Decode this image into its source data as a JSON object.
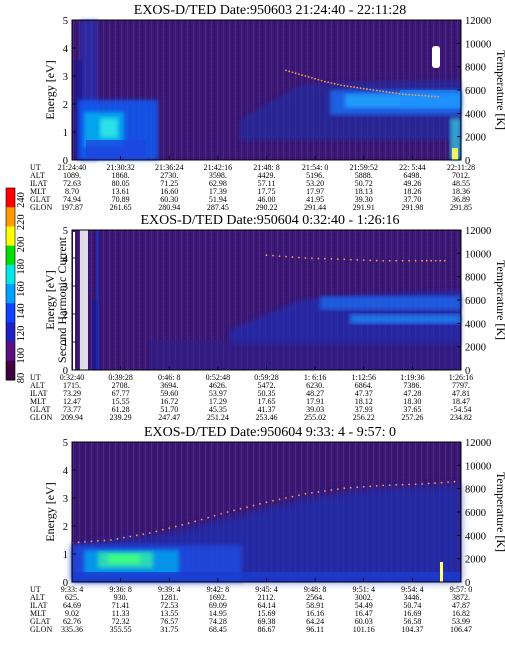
{
  "colorbar": {
    "label": "Second Harmonic Current",
    "ticks": [
      "240",
      "220",
      "200",
      "180",
      "160",
      "140",
      "120",
      "100",
      "80"
    ],
    "colors": [
      "#ff0000",
      "#ff9a00",
      "#ffff00",
      "#00e000",
      "#00e8e8",
      "#00a0ff",
      "#1040ff",
      "#2020c0",
      "#5a1080",
      "#400040"
    ]
  },
  "chart_data": [
    {
      "type": "heatmap",
      "title": "EXOS-D/TED   Date:950603  21:24:40 - 22:11:28",
      "ylabel": "Energy [eV]",
      "y2label": "Temperature [K]",
      "ylim": [
        0,
        5
      ],
      "y2lim": [
        0,
        12000
      ],
      "yticks": [
        "0",
        "1",
        "2",
        "3",
        "4",
        "5"
      ],
      "y2ticks": [
        "0",
        "2000",
        "4000",
        "6000",
        "8000",
        "10000",
        "12000"
      ],
      "rows": [
        {
          "label": "UT",
          "values": [
            "21:24:40",
            "21:30:32",
            "21:36:24",
            "21:42:16",
            "21:48: 8",
            "21:54: 0",
            "21:59:52",
            "22: 5:44",
            "22:11:28"
          ]
        },
        {
          "label": "ALT",
          "values": [
            "1089.",
            "1868.",
            "2730.",
            "3598.",
            "4429.",
            "5196.",
            "5888.",
            "6498.",
            "7012."
          ]
        },
        {
          "label": "ILAT",
          "values": [
            "72.63",
            "80.05",
            "71.25",
            "62.98",
            "57.11",
            "53.20",
            "50.72",
            "49.26",
            "48.55"
          ]
        },
        {
          "label": "MLT",
          "values": [
            "8.70",
            "13.61",
            "16.60",
            "17.39",
            "17.75",
            "17.97",
            "18.13",
            "18.26",
            "18.36"
          ]
        },
        {
          "label": "GLAT",
          "values": [
            "74.94",
            "70.89",
            "60.30",
            "51.94",
            "46.00",
            "41.95",
            "39.30",
            "37.70",
            "36.89"
          ]
        },
        {
          "label": "GLON",
          "values": [
            "197.87",
            "261.65",
            "280.94",
            "287.45",
            "290.22",
            "291.44",
            "291.91",
            "291.98",
            "291.85"
          ]
        }
      ],
      "temperature_trace": [
        [
          0.55,
          3.2
        ],
        [
          0.6,
          3.0
        ],
        [
          0.65,
          2.8
        ],
        [
          0.7,
          2.65
        ],
        [
          0.75,
          2.55
        ],
        [
          0.8,
          2.45
        ],
        [
          0.85,
          2.35
        ],
        [
          0.9,
          2.3
        ],
        [
          0.95,
          2.25
        ]
      ]
    },
    {
      "type": "heatmap",
      "title": "EXOS-D/TED   Date:950604  0:32:40 - 1:26:16",
      "ylabel": "Energy [eV]",
      "y2label": "Temperature [K]",
      "ylim": [
        0,
        5
      ],
      "y2lim": [
        0,
        12000
      ],
      "yticks": [
        "0",
        "1",
        "2",
        "3",
        "4",
        "5"
      ],
      "y2ticks": [
        "0",
        "2000",
        "4000",
        "6000",
        "8000",
        "10000",
        "12000"
      ],
      "rows": [
        {
          "label": "UT",
          "values": [
            "0:32:40",
            "0:39:28",
            "0:46: 8",
            "0:52:48",
            "0:59:28",
            "1: 6:16",
            "1:12:56",
            "1:19:36",
            "1:26:16"
          ]
        },
        {
          "label": "ALT",
          "values": [
            "1715.",
            "2708.",
            "3694.",
            "4626.",
            "5472.",
            "6230.",
            "6864.",
            "7386.",
            "7797."
          ]
        },
        {
          "label": "ILAT",
          "values": [
            "73.29",
            "67.77",
            "59.60",
            "53.97",
            "50.35",
            "48.27",
            "47.37",
            "47.28",
            "47.81"
          ]
        },
        {
          "label": "MLT",
          "values": [
            "12.47",
            "15.55",
            "16.72",
            "17.29",
            "17.65",
            "17.91",
            "18.12",
            "18.30",
            "18.47"
          ]
        },
        {
          "label": "GLAT",
          "values": [
            "73.77",
            "61.28",
            "51.70",
            "45.35",
            "41.37",
            "39.03",
            "37.93",
            "37.65",
            "-54.54"
          ]
        },
        {
          "label": "GLON",
          "values": [
            "209.94",
            "239.29",
            "247.47",
            "251.24",
            "253.46",
            "255.02",
            "256.22",
            "257.26",
            "234.82"
          ]
        }
      ],
      "temperature_trace": [
        [
          0.5,
          4.1
        ],
        [
          0.6,
          4.0
        ],
        [
          0.7,
          3.95
        ],
        [
          0.8,
          3.9
        ],
        [
          0.9,
          3.9
        ],
        [
          0.97,
          3.9
        ]
      ]
    },
    {
      "type": "heatmap",
      "title": "EXOS-D/TED   Date:950604  9:33: 4 - 9:57: 0",
      "ylabel": "Energy [eV]",
      "y2label": "Temperature [K]",
      "ylim": [
        0,
        5
      ],
      "y2lim": [
        0,
        12000
      ],
      "yticks": [
        "0",
        "1",
        "2",
        "3",
        "4",
        "5"
      ],
      "y2ticks": [
        "0",
        "2000",
        "4000",
        "6000",
        "8000",
        "10000",
        "12000"
      ],
      "rows": [
        {
          "label": "UT",
          "values": [
            "9:33: 4",
            "9:36: 8",
            "9:39: 4",
            "9:42: 8",
            "9:45: 4",
            "9:48: 8",
            "9:51: 4",
            "9:54: 4",
            "9:57: 0"
          ]
        },
        {
          "label": "ALT",
          "values": [
            "625.",
            "930.",
            "1281.",
            "1692.",
            "2112.",
            "2564.",
            "3002.",
            "3446.",
            "3872."
          ]
        },
        {
          "label": "ILAT",
          "values": [
            "64.69",
            "71.41",
            "72.53",
            "69.09",
            "64.14",
            "58.91",
            "54.49",
            "50.74",
            "47.87"
          ]
        },
        {
          "label": "MLT",
          "values": [
            "9.02",
            "11.33",
            "13.55",
            "14.95",
            "15.69",
            "16.16",
            "16.47",
            "16.69",
            "16.82"
          ]
        },
        {
          "label": "GLAT",
          "values": [
            "62.76",
            "72.32",
            "76.57",
            "74.28",
            "69.38",
            "64.24",
            "60.03",
            "56.58",
            "53.99"
          ]
        },
        {
          "label": "GLON",
          "values": [
            "335.36",
            "355.55",
            "31.75",
            "68.45",
            "86.67",
            "96.11",
            "101.16",
            "104.37",
            "106.47"
          ]
        }
      ],
      "temperature_trace": [
        [
          0.0,
          1.4
        ],
        [
          0.1,
          1.5
        ],
        [
          0.2,
          1.75
        ],
        [
          0.3,
          2.1
        ],
        [
          0.4,
          2.5
        ],
        [
          0.5,
          2.85
        ],
        [
          0.6,
          3.15
        ],
        [
          0.7,
          3.35
        ],
        [
          0.8,
          3.45
        ],
        [
          0.9,
          3.5
        ],
        [
          1.0,
          3.6
        ]
      ]
    }
  ]
}
